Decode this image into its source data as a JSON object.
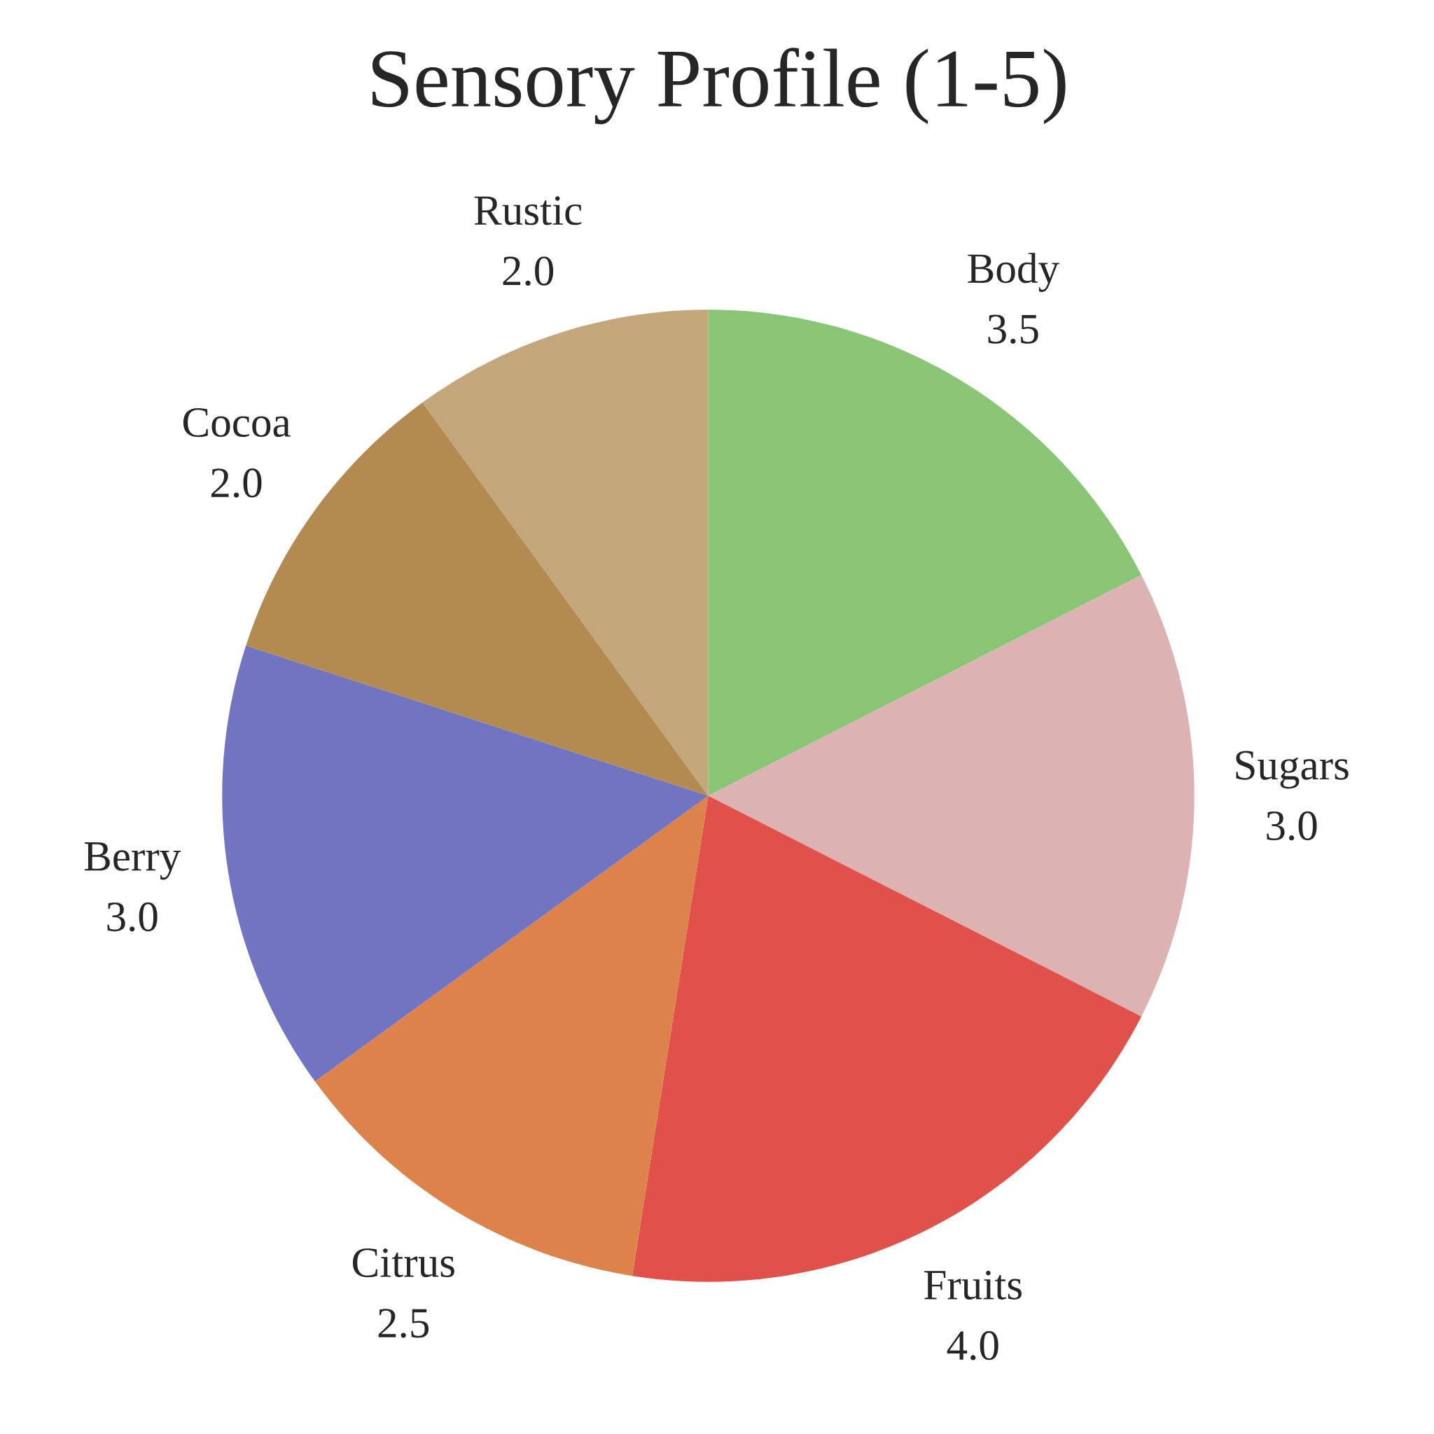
{
  "chart_data": {
    "type": "pie",
    "title": "Sensory Profile (1-5)",
    "categories": [
      "Body",
      "Sugars",
      "Fruits",
      "Citrus",
      "Berry",
      "Cocoa",
      "Rustic"
    ],
    "values": [
      3.5,
      3.0,
      4.0,
      2.5,
      3.0,
      2.0,
      2.0
    ],
    "colors": [
      "#88c574",
      "#dcb2b2",
      "#df5149",
      "#de824b",
      "#7174c1",
      "#b38a4f",
      "#c3a679"
    ],
    "value_labels": [
      "3.5",
      "3.0",
      "4.0",
      "2.5",
      "3.0",
      "2.0",
      "2.0"
    ]
  }
}
